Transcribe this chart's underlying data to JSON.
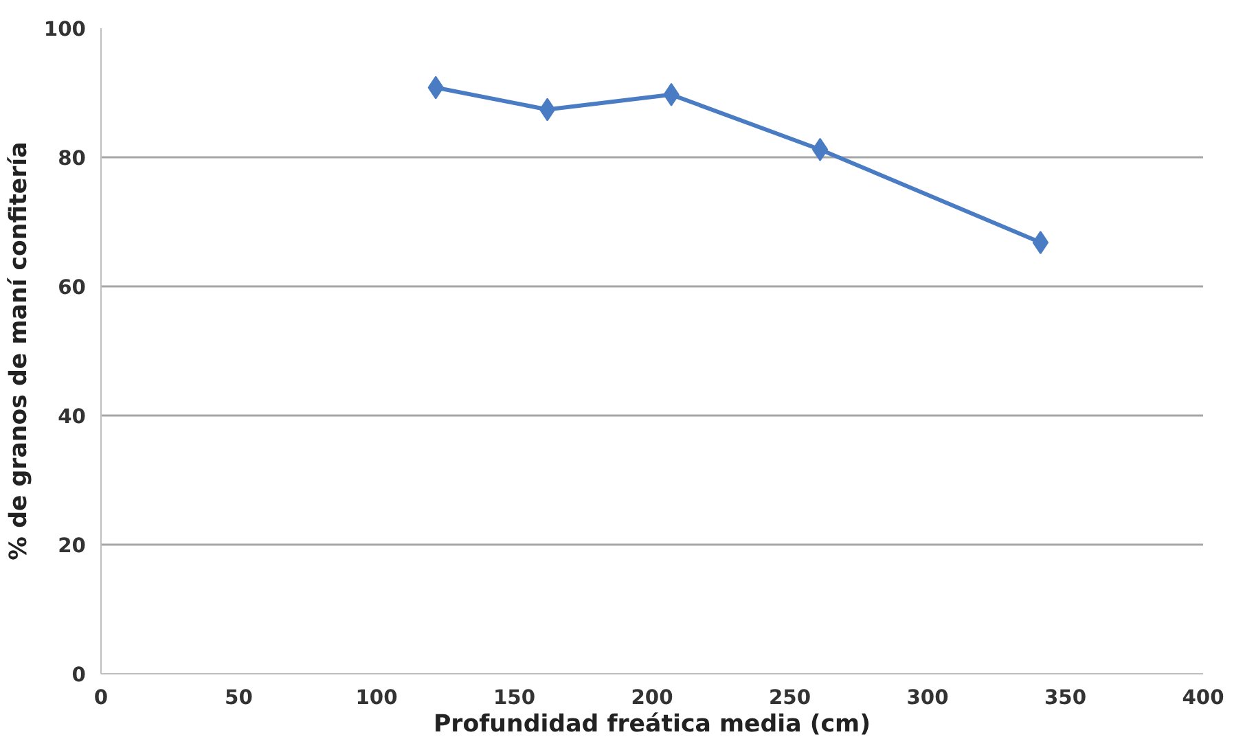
{
  "chart_data": {
    "type": "line",
    "xlabel": "Profundidad freática media (cm)",
    "ylabel": "% de granos de maní confitería",
    "x": [
      121.5,
      162,
      207,
      261,
      341
    ],
    "series": [
      {
        "color": "#4a7cc4",
        "values": [
          90.8,
          87.4,
          89.7,
          81.2,
          66.8
        ]
      }
    ],
    "xlim": [
      0,
      400
    ],
    "xticks": [
      0,
      50,
      100,
      150,
      200,
      250,
      300,
      350,
      400
    ],
    "ylim": [
      0,
      100
    ],
    "yticks": [
      0,
      20,
      40,
      60,
      80,
      100
    ],
    "grid": "y",
    "marker": "diamond",
    "line_style": "solid"
  }
}
